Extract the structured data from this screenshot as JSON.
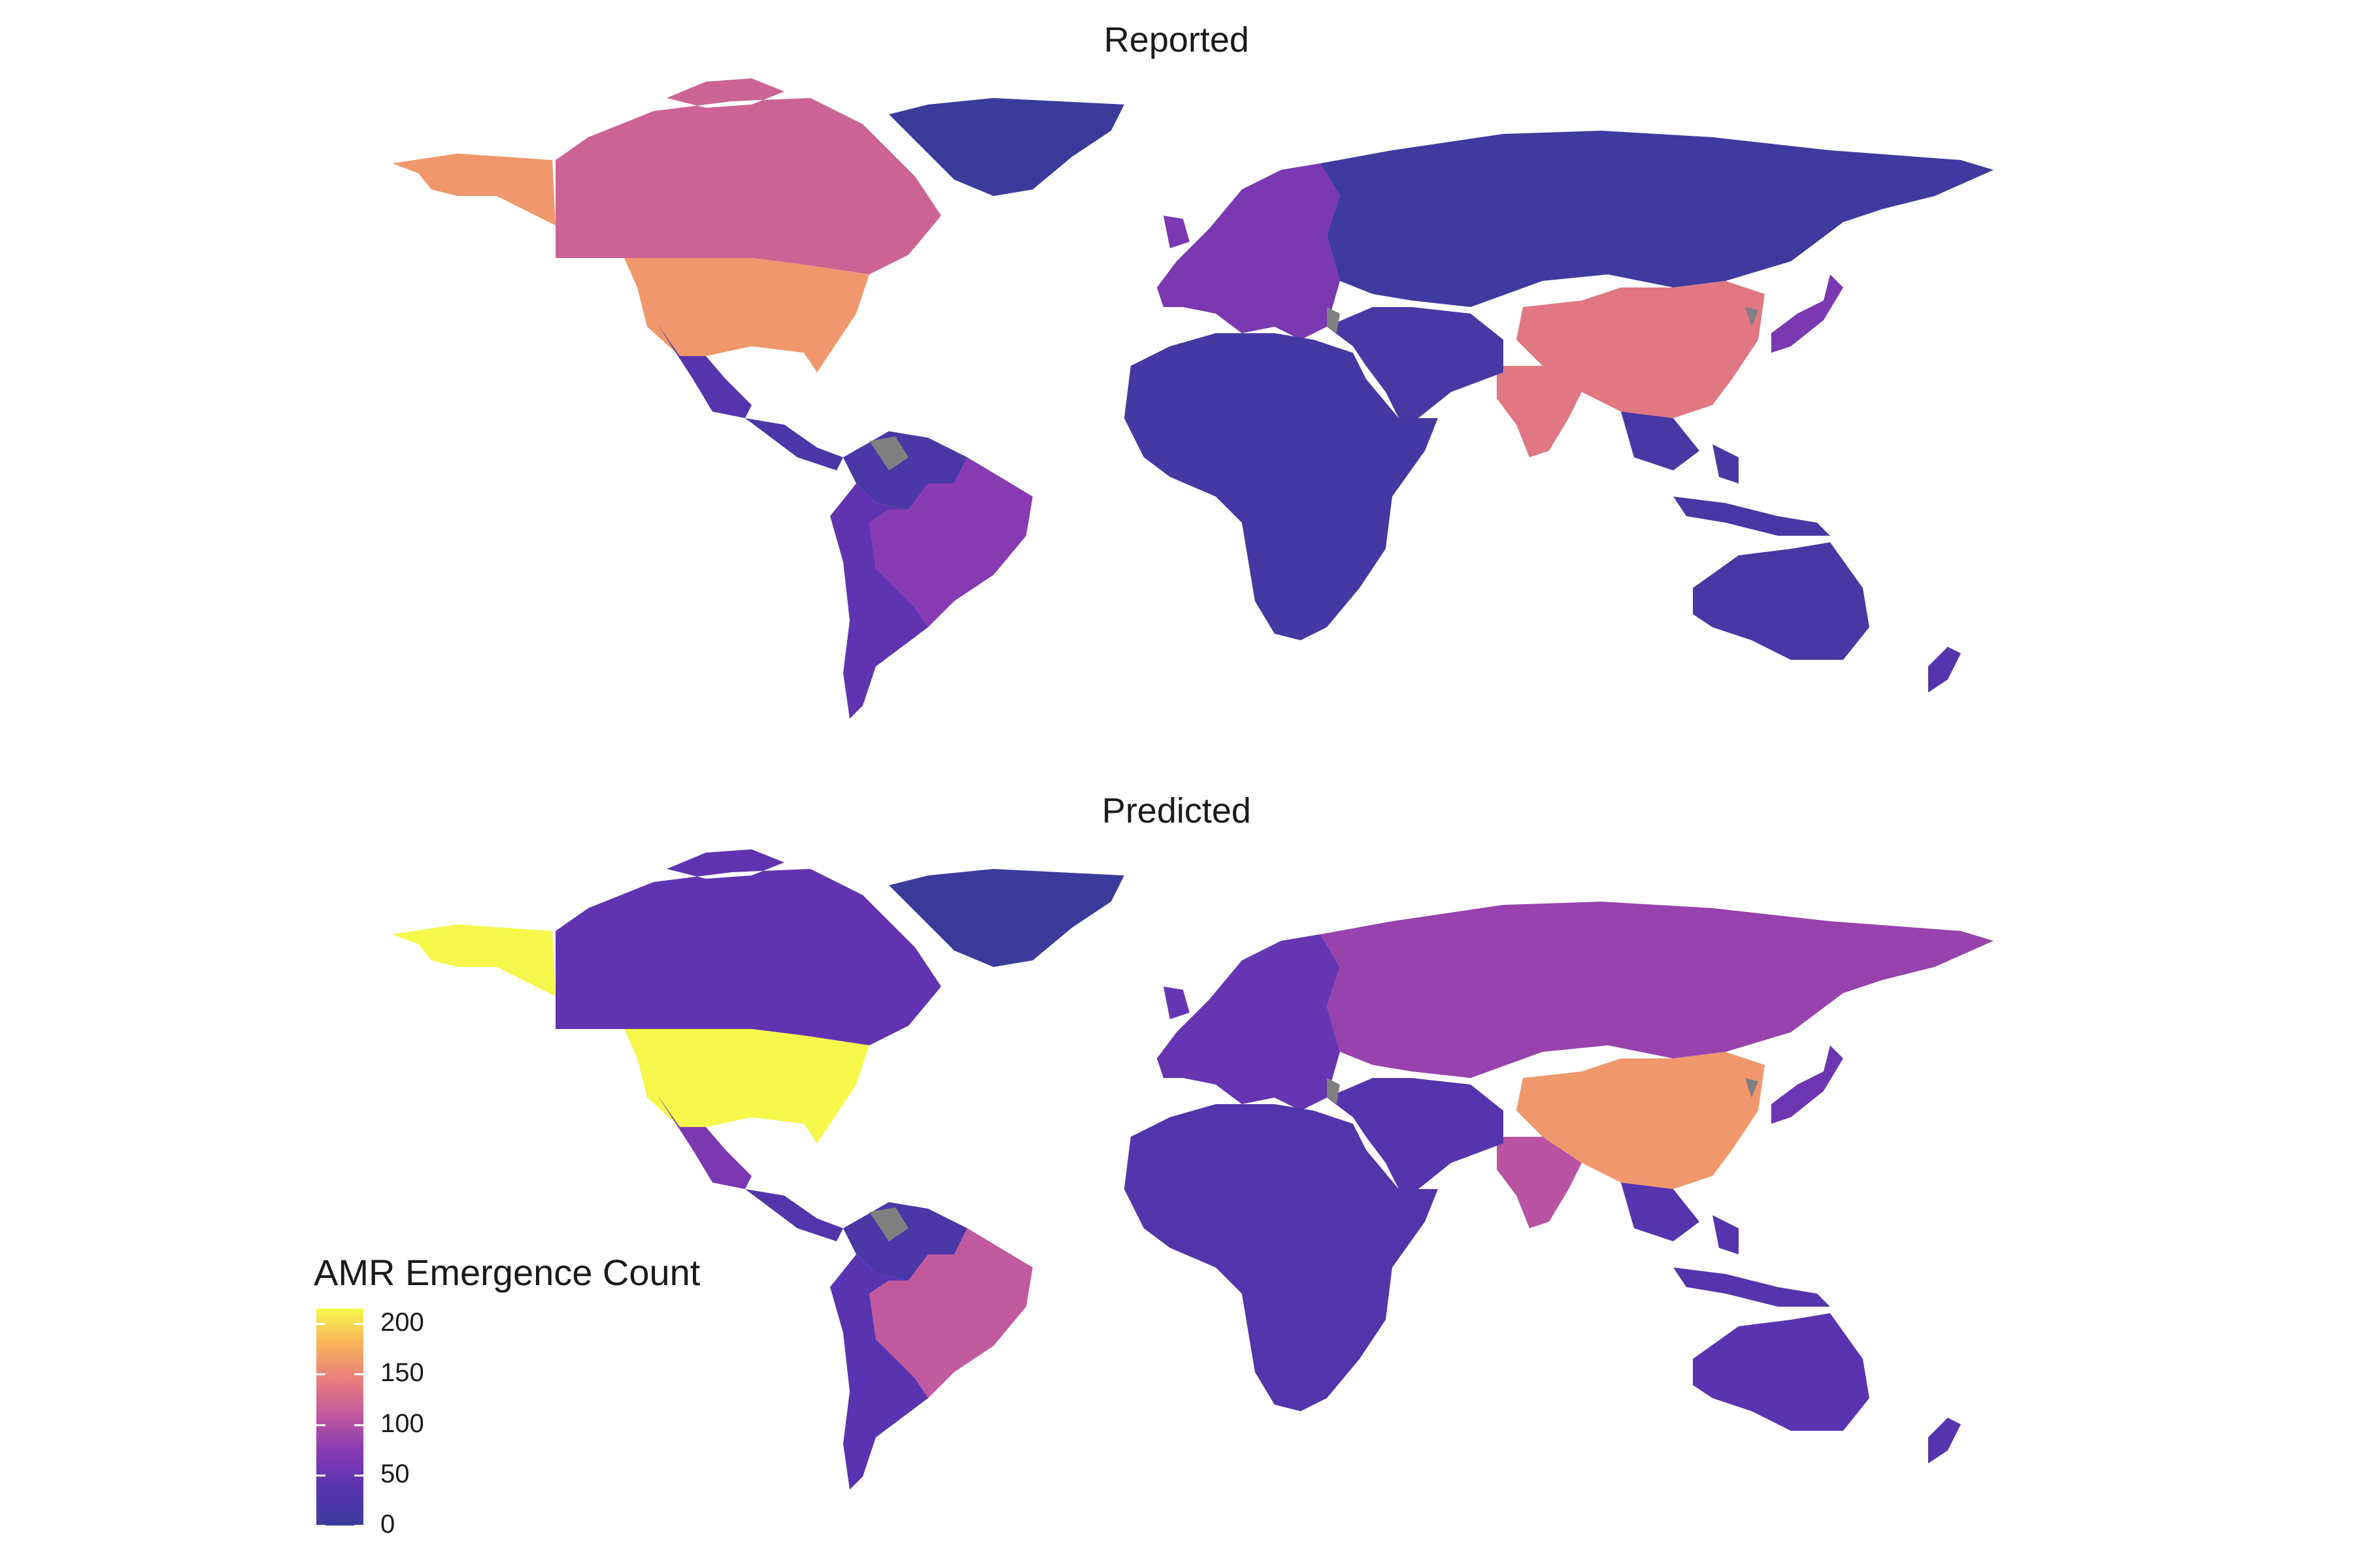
{
  "panels": [
    {
      "title": "Reported"
    },
    {
      "title": "Predicted"
    }
  ],
  "legend": {
    "title": "AMR Emergence Count",
    "scale_min": 0,
    "scale_max": 215,
    "tick_values": [
      0,
      50,
      100,
      150,
      200
    ],
    "tick_labels": [
      "0",
      "50",
      "100",
      "150",
      "200"
    ],
    "colors": [
      "#3b3b9c",
      "#5a33b0",
      "#8a3ab2",
      "#c45b9c",
      "#e9807c",
      "#f8b35a",
      "#f5f84a"
    ],
    "missing_color": "#808080"
  },
  "map_data": {
    "reported": {
      "north-america-usa": 160,
      "north-america-alaska": 160,
      "north-america-canada": 115,
      "greenland": 0,
      "mexico": 30,
      "central-america": 20,
      "south-america-north": 20,
      "brazil": 70,
      "south-america-south": 40,
      "europe": 60,
      "russia": 5,
      "china": 135,
      "india": 135,
      "middle-east": 15,
      "africa": 10,
      "southeast-asia": 15,
      "japan": 60,
      "australia": 15,
      "new-zealand": 30
    },
    "predicted": {
      "north-america-usa": 215,
      "north-america-alaska": 215,
      "north-america-canada": 40,
      "greenland": 0,
      "mexico": 60,
      "central-america": 25,
      "south-america-north": 20,
      "brazil": 105,
      "south-america-south": 35,
      "europe": 45,
      "russia": 80,
      "china": 160,
      "india": 100,
      "middle-east": 30,
      "africa": 25,
      "southeast-asia": 30,
      "japan": 50,
      "australia": 35,
      "new-zealand": 30
    }
  }
}
